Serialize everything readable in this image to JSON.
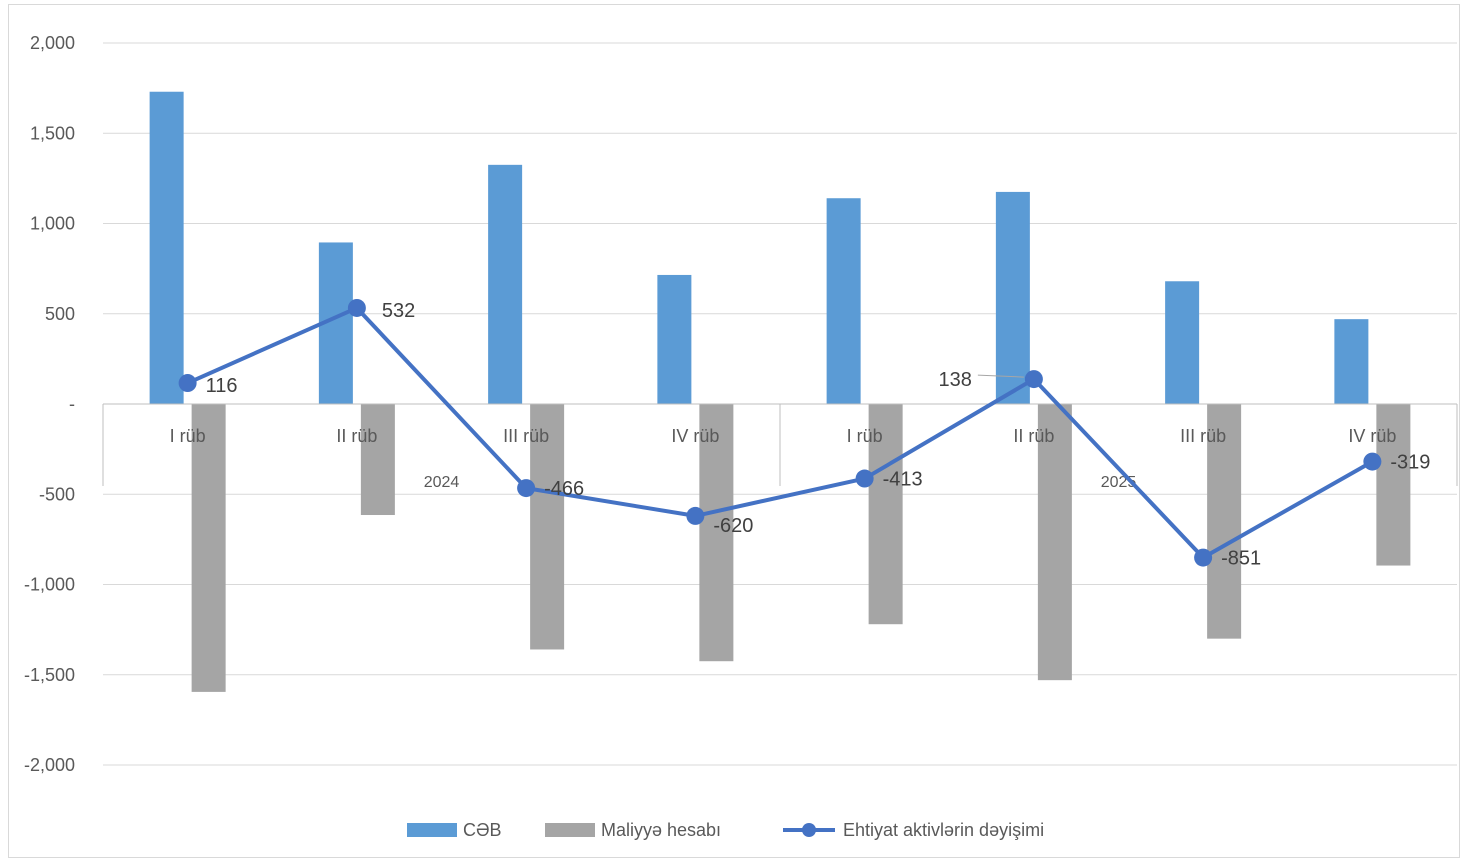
{
  "chart_data": {
    "type": "bar",
    "title": "",
    "xlabel": "",
    "ylabel": "",
    "ylim": [
      -2000,
      2000
    ],
    "yticks": [
      2000,
      1500,
      1000,
      500,
      0,
      -500,
      -1000,
      -1500,
      -2000
    ],
    "ytick_labels": [
      "2,000",
      "1,500",
      "1,000",
      "500",
      "-",
      "-500",
      "-1,000",
      "-1,500",
      "-2,000"
    ],
    "grid": true,
    "legend_position": "bottom",
    "categories": [
      "I rüb",
      "II rüb",
      "III rüb",
      "IV rüb",
      "I rüb",
      "II rüb",
      "III rüb",
      "IV rüb"
    ],
    "groups": [
      {
        "label": "2024",
        "span": [
          0,
          3
        ]
      },
      {
        "label": "2025",
        "span": [
          4,
          7
        ]
      }
    ],
    "series": [
      {
        "name": "CƏB",
        "type": "bar",
        "color": "#5b9bd5",
        "values": [
          1730,
          895,
          1325,
          715,
          1140,
          1175,
          680,
          470
        ]
      },
      {
        "name": "Maliyyə hesabı",
        "type": "bar",
        "color": "#a5a5a5",
        "values": [
          -1595,
          -615,
          -1360,
          -1425,
          -1220,
          -1530,
          -1300,
          -895
        ]
      },
      {
        "name": "Ehtiyat aktivlərin dəyişimi",
        "type": "line",
        "color": "#4472c4",
        "values": [
          116,
          532,
          -466,
          -620,
          -413,
          138,
          -851,
          -319
        ],
        "labels": [
          "116",
          "532",
          "-466",
          "-620",
          "-413",
          "138",
          "-851",
          "-319"
        ]
      }
    ]
  }
}
